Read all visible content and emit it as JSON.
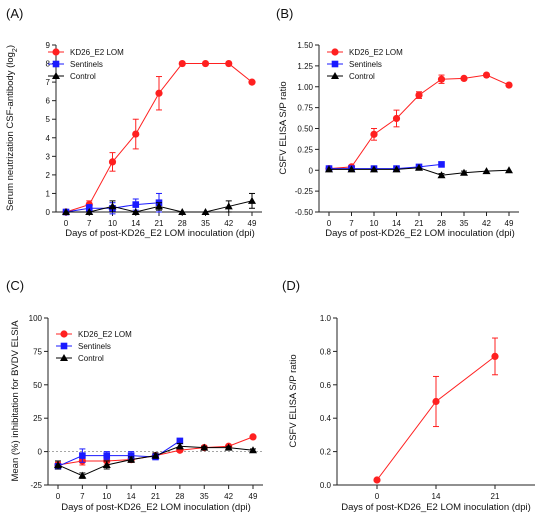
{
  "chart_data": [
    {
      "panel_label": "(A)",
      "type": "line",
      "ylabel": "Serum neutrization CSF-antibody (log",
      "ylabel_sub": "2",
      "ylabel_tail": ")",
      "xlabel": "Days of post-KD26_E2 LOM inoculation (dpi)",
      "x": [
        0,
        7,
        10,
        14,
        21,
        28,
        35,
        42,
        49
      ],
      "ylim": [
        0,
        9
      ],
      "yticks": [
        "0",
        "1",
        "2",
        "3",
        "4",
        "5",
        "6",
        "7",
        "8",
        "9"
      ],
      "legend_position": "top-left",
      "series": [
        {
          "name": "KD26_E2 LOM",
          "color": "#ff2020",
          "marker": "circle",
          "values": [
            0,
            0.4,
            2.7,
            4.2,
            6.4,
            8,
            8,
            8,
            7
          ],
          "errors": [
            0,
            0.2,
            0.5,
            0.8,
            0.9,
            0,
            0,
            0,
            0
          ]
        },
        {
          "name": "Sentinels",
          "color": "#1a1aff",
          "marker": "square",
          "values": [
            0,
            0.2,
            0.2,
            0.4,
            0.5,
            null,
            null,
            null,
            null
          ],
          "errors": [
            0,
            0.2,
            0.3,
            0.3,
            0.5,
            0,
            0,
            0,
            0
          ]
        },
        {
          "name": "Control",
          "color": "#000000",
          "marker": "triangle",
          "values": [
            0,
            0,
            0.3,
            0,
            0.3,
            0,
            0,
            0.3,
            0.6
          ],
          "errors": [
            0,
            0,
            0.3,
            0,
            0.2,
            0,
            0,
            0.3,
            0.4
          ]
        }
      ]
    },
    {
      "panel_label": "(B)",
      "type": "line",
      "ylabel": "CSFV ELISA S/P ratio",
      "xlabel": "Days of post-KD26_E2 LOM inoculation (dpi)",
      "x": [
        0,
        7,
        10,
        14,
        21,
        28,
        35,
        42,
        49
      ],
      "ylim": [
        -0.5,
        1.5
      ],
      "yticks": [
        "-0.50",
        "-0.25",
        "0",
        "0.25",
        "0.50",
        "0.75",
        "1.00",
        "1.25",
        "1.50"
      ],
      "legend_position": "top-left",
      "series": [
        {
          "name": "KD26_E2 LOM",
          "color": "#ff2020",
          "marker": "circle",
          "values": [
            0.02,
            0.04,
            0.43,
            0.62,
            0.9,
            1.09,
            1.1,
            1.14,
            1.02
          ],
          "errors": [
            0.02,
            0.02,
            0.07,
            0.1,
            0.04,
            0.05,
            0,
            0,
            0
          ]
        },
        {
          "name": "Sentinels",
          "color": "#1a1aff",
          "marker": "square",
          "values": [
            0.02,
            0.02,
            0.02,
            0.02,
            0.04,
            0.07,
            null,
            null,
            null
          ],
          "errors": [
            0,
            0,
            0.02,
            0.02,
            0.01,
            0,
            0,
            0,
            0
          ]
        },
        {
          "name": "Control",
          "color": "#000000",
          "marker": "triangle",
          "values": [
            0.01,
            0.01,
            0.01,
            0.01,
            0.03,
            -0.06,
            -0.03,
            -0.01,
            0
          ],
          "errors": [
            0,
            0,
            0,
            0,
            0,
            0.02,
            0.02,
            0,
            0
          ]
        }
      ]
    },
    {
      "panel_label": "(C)",
      "type": "line",
      "ylabel": "Mean (%) inhibitation for BVDV ELSIA",
      "xlabel": "Days of post-KD26_E2 LOM inoculation (dpi)",
      "x": [
        0,
        7,
        10,
        14,
        21,
        28,
        35,
        42,
        49
      ],
      "ylim": [
        -25,
        100
      ],
      "yticks": [
        "-25",
        "0",
        "25",
        "50",
        "75",
        "100"
      ],
      "legend_position": "top-left",
      "series": [
        {
          "name": "KD26_E2 LOM",
          "color": "#ff2020",
          "marker": "circle",
          "values": [
            -10,
            -7,
            -7,
            -6,
            -3,
            1,
            3,
            4,
            11
          ],
          "errors": [
            2,
            3,
            3,
            2,
            2,
            1,
            1,
            1,
            1
          ]
        },
        {
          "name": "Sentinels",
          "color": "#1a1aff",
          "marker": "square",
          "values": [
            -11,
            -3,
            -3,
            -3,
            -4,
            8,
            null,
            null,
            null
          ],
          "errors": [
            2,
            5,
            3,
            3,
            2,
            1,
            0,
            0,
            0
          ]
        },
        {
          "name": "Control",
          "color": "#000000",
          "marker": "triangle",
          "values": [
            -10,
            -18,
            -10,
            -6,
            -3,
            4,
            3,
            3,
            1
          ],
          "errors": [
            3,
            2,
            3,
            2,
            2,
            2,
            1,
            1,
            1
          ]
        }
      ]
    },
    {
      "panel_label": "(D)",
      "type": "line",
      "ylabel": "CSFV ELISA S/P ratio",
      "xlabel": "Days of post-KD26_E2 LOM inoculation (dpi)",
      "categories": [
        "0",
        "14",
        "21"
      ],
      "ylim": [
        0,
        1.0
      ],
      "yticks": [
        "0.0",
        "0.2",
        "0.4",
        "0.6",
        "0.8",
        "1.0"
      ],
      "series": [
        {
          "color": "#ff2020",
          "marker": "circle",
          "values": [
            0.03,
            0.5,
            0.77
          ],
          "errors": [
            0,
            0.15,
            0.11
          ]
        }
      ]
    }
  ]
}
